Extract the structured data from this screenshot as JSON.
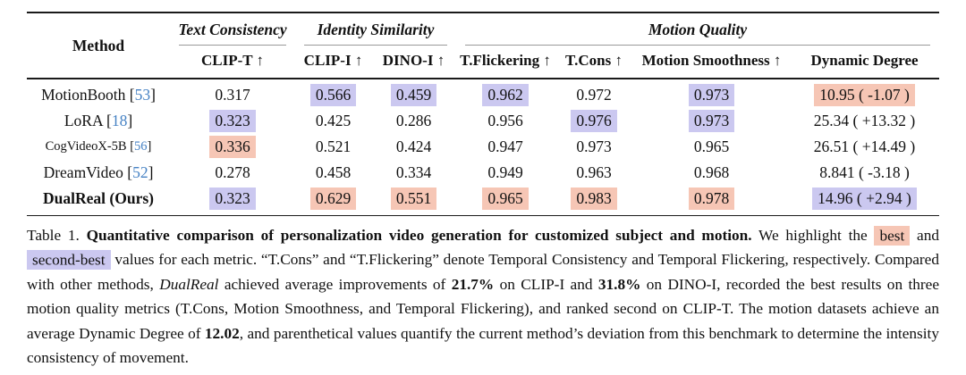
{
  "colors": {
    "best": "#f6c6b5",
    "second": "#cbc8f0",
    "cite": "#4682c4"
  },
  "table": {
    "method_header": "Method",
    "bracket_open": "[",
    "bracket_close": "]",
    "groups": [
      {
        "label": "Text Consistency"
      },
      {
        "label": "Identity Similarity"
      },
      {
        "label": "Motion Quality"
      }
    ],
    "metrics": [
      "CLIP-T ↑",
      "CLIP-I ↑",
      "DINO-I ↑",
      "T.Flickering ↑",
      "T.Cons ↑",
      "Motion Smoothness ↑",
      "Dynamic Degree"
    ],
    "rows": [
      {
        "method": {
          "name": "MotionBooth",
          "cite": "53"
        },
        "cells": [
          {
            "v": "0.317",
            "hl": ""
          },
          {
            "v": "0.566",
            "hl": "second"
          },
          {
            "v": "0.459",
            "hl": "second"
          },
          {
            "v": "0.962",
            "hl": "second"
          },
          {
            "v": "0.972",
            "hl": ""
          },
          {
            "v": "0.973",
            "hl": "second"
          },
          {
            "v": "10.95 ( -1.07 )",
            "hl": "best"
          }
        ]
      },
      {
        "method": {
          "name": "LoRA",
          "cite": "18"
        },
        "cells": [
          {
            "v": "0.323",
            "hl": "second"
          },
          {
            "v": "0.425",
            "hl": ""
          },
          {
            "v": "0.286",
            "hl": ""
          },
          {
            "v": "0.956",
            "hl": ""
          },
          {
            "v": "0.976",
            "hl": "second"
          },
          {
            "v": "0.973",
            "hl": "second"
          },
          {
            "v": "25.34 ( +13.32 )",
            "hl": ""
          }
        ]
      },
      {
        "method": {
          "name": "CogVideoX-5B",
          "cite": "56"
        },
        "cells": [
          {
            "v": "0.336",
            "hl": "best"
          },
          {
            "v": "0.521",
            "hl": ""
          },
          {
            "v": "0.424",
            "hl": ""
          },
          {
            "v": "0.947",
            "hl": ""
          },
          {
            "v": "0.973",
            "hl": ""
          },
          {
            "v": "0.965",
            "hl": ""
          },
          {
            "v": "26.51 ( +14.49 )",
            "hl": ""
          }
        ]
      },
      {
        "method": {
          "name": "DreamVideo",
          "cite": "52"
        },
        "cells": [
          {
            "v": "0.278",
            "hl": ""
          },
          {
            "v": "0.458",
            "hl": ""
          },
          {
            "v": "0.334",
            "hl": ""
          },
          {
            "v": "0.949",
            "hl": ""
          },
          {
            "v": "0.963",
            "hl": ""
          },
          {
            "v": "0.968",
            "hl": ""
          },
          {
            "v": "8.841 ( -3.18 )",
            "hl": ""
          }
        ]
      },
      {
        "method": {
          "name": "DualReal (Ours)",
          "cite": ""
        },
        "cells": [
          {
            "v": "0.323",
            "hl": "second"
          },
          {
            "v": "0.629",
            "hl": "best"
          },
          {
            "v": "0.551",
            "hl": "best"
          },
          {
            "v": "0.965",
            "hl": "best"
          },
          {
            "v": "0.983",
            "hl": "best"
          },
          {
            "v": "0.978",
            "hl": "best"
          },
          {
            "v": "14.96 ( +2.94 )",
            "hl": "second"
          }
        ]
      }
    ]
  },
  "caption": {
    "segments": [
      {
        "text": "Table 1. "
      },
      {
        "text": "Quantitative comparison of personalization video generation for customized subject and motion."
      },
      {
        "text": " We highlight the "
      },
      {
        "text": "best"
      },
      {
        "text": " and "
      },
      {
        "text": "second-best"
      },
      {
        "text": " values for each metric.  “T.Cons” and “T.Flickering” denote Temporal Consistency and Temporal Flickering, respectively. Compared with other methods, "
      },
      {
        "text": "DualReal"
      },
      {
        "text": " achieved average improvements of "
      },
      {
        "text": "21.7%"
      },
      {
        "text": " on CLIP-I and "
      },
      {
        "text": "31.8%"
      },
      {
        "text": " on DINO-I, recorded the best results on three motion quality metrics (T.Cons, Motion Smoothness, and Temporal Flickering), and ranked second on CLIP-T. The motion datasets achieve an average Dynamic Degree of "
      },
      {
        "text": "12.02"
      },
      {
        "text": ", and parenthetical values quantify the current method’s deviation from this benchmark to determine the intensity consistency of movement."
      }
    ]
  }
}
